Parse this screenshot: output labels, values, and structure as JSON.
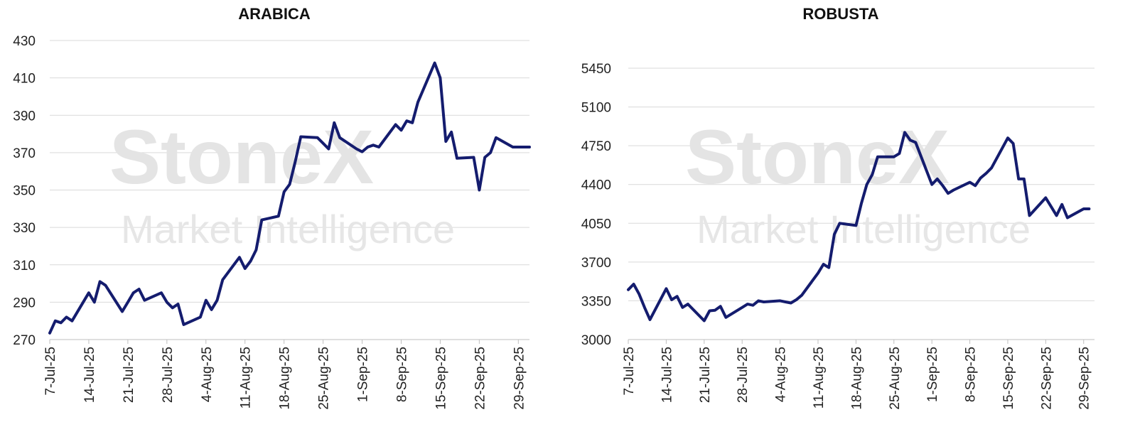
{
  "chart_data": [
    {
      "type": "line",
      "title": "ARABICA",
      "xlabel": "",
      "ylabel": "",
      "ylim": [
        270,
        430
      ],
      "yticks": [
        "270",
        "290",
        "310",
        "330",
        "350",
        "370",
        "390",
        "410",
        "430"
      ],
      "xticks": [
        "7-Jul-25",
        "14-Jul-25",
        "21-Jul-25",
        "28-Jul-25",
        "4-Aug-25",
        "11-Aug-25",
        "18-Aug-25",
        "25-Aug-25",
        "1-Sep-25",
        "8-Sep-25",
        "15-Sep-25",
        "22-Sep-25",
        "29-Sep-25"
      ],
      "grid": true,
      "series": [
        {
          "name": "Arabica",
          "color": "#141c6e",
          "x": [
            0,
            1,
            2,
            3,
            4,
            7,
            8,
            9,
            10,
            13,
            14,
            15,
            16,
            17,
            20,
            21,
            22,
            23,
            24,
            27,
            28,
            29,
            30,
            31,
            34,
            35,
            36,
            37,
            38,
            41,
            42,
            43,
            44,
            45,
            48,
            49,
            50,
            51,
            52,
            55,
            56,
            57,
            58,
            59,
            62,
            63,
            64,
            65,
            66,
            69,
            70,
            71,
            72,
            73,
            76,
            77,
            78,
            79,
            80,
            83,
            84,
            85,
            86
          ],
          "values": [
            273.5,
            280,
            279,
            282,
            280,
            295,
            290,
            301,
            299,
            285,
            290,
            295,
            297,
            291,
            295,
            290,
            287,
            289,
            278,
            282,
            291,
            286,
            291,
            302,
            314,
            308,
            312,
            318,
            334,
            336,
            349,
            353,
            365,
            378.5,
            378,
            375,
            372,
            386,
            378,
            372,
            370.5,
            373,
            374,
            373,
            385,
            382,
            387,
            386,
            397,
            418,
            410,
            376,
            381,
            367,
            367.5,
            350,
            367.5,
            370,
            378,
            373,
            373,
            373,
            373
          ]
        }
      ],
      "watermark": [
        "StoneX",
        "Market Intelligence"
      ]
    },
    {
      "type": "line",
      "title": "ROBUSTA",
      "xlabel": "",
      "ylabel": "",
      "ylim": [
        3000,
        5450
      ],
      "yticks": [
        "3000",
        "3350",
        "3700",
        "4050",
        "4400",
        "4750",
        "5100",
        "5450"
      ],
      "xticks": [
        "7-Jul-25",
        "14-Jul-25",
        "21-Jul-25",
        "28-Jul-25",
        "4-Aug-25",
        "11-Aug-25",
        "18-Aug-25",
        "25-Aug-25",
        "1-Sep-25",
        "8-Sep-25",
        "15-Sep-25",
        "22-Sep-25",
        "29-Sep-25"
      ],
      "grid": true,
      "series": [
        {
          "name": "Robusta",
          "color": "#141c6e",
          "x": [
            0,
            1,
            2,
            3,
            4,
            7,
            8,
            9,
            10,
            11,
            14,
            15,
            16,
            17,
            18,
            21,
            22,
            23,
            24,
            25,
            28,
            29,
            30,
            31,
            32,
            35,
            36,
            37,
            38,
            39,
            42,
            43,
            44,
            45,
            46,
            49,
            50,
            51,
            52,
            53,
            56,
            57,
            58,
            59,
            60,
            63,
            64,
            65,
            66,
            67,
            70,
            71,
            72,
            73,
            74,
            77,
            78,
            79,
            80,
            81,
            84,
            85
          ],
          "values": [
            3450,
            3500,
            3410,
            3290,
            3180,
            3460,
            3360,
            3390,
            3290,
            3320,
            3170,
            3260,
            3265,
            3300,
            3200,
            3290,
            3320,
            3310,
            3350,
            3340,
            3350,
            3340,
            3330,
            3360,
            3400,
            3600,
            3680,
            3650,
            3950,
            4050,
            4030,
            4230,
            4400,
            4490,
            4650,
            4650,
            4680,
            4870,
            4800,
            4780,
            4400,
            4450,
            4390,
            4320,
            4350,
            4420,
            4390,
            4460,
            4500,
            4550,
            4820,
            4770,
            4450,
            4450,
            4120,
            4280,
            4200,
            4120,
            4220,
            4100,
            4180,
            4180
          ]
        }
      ],
      "watermark": [
        "StoneX",
        "Market Intelligence"
      ]
    }
  ]
}
